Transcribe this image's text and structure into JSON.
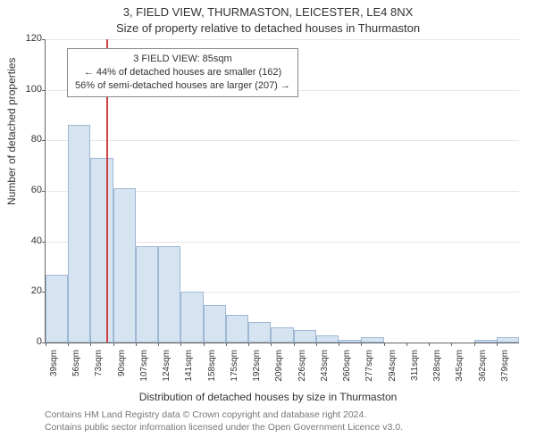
{
  "title_line1": "3, FIELD VIEW, THURMASTON, LEICESTER, LE4 8NX",
  "title_line2": "Size of property relative to detached houses in Thurmaston",
  "ylabel": "Number of detached properties",
  "xlabel": "Distribution of detached houses by size in Thurmaston",
  "footer_line1": "Contains HM Land Registry data © Crown copyright and database right 2024.",
  "footer_line2": "Contains public sector information licensed under the Open Government Licence v3.0.",
  "annotation": {
    "line1": "3 FIELD VIEW:  85sqm",
    "line2": "← 44% of detached houses are smaller (162)",
    "line3": "56% of semi-detached houses are larger (207) →"
  },
  "chart": {
    "type": "histogram",
    "ylim": [
      0,
      120
    ],
    "ytick_step": 20,
    "bar_fill": "#d6e4f2",
    "bar_stroke": "#9fb8d4",
    "grid_color": "#e6e6e6",
    "axis_color": "#666666",
    "refline_color": "#d04040",
    "refline_x_value": 85,
    "background": "#ffffff",
    "x_start": 39,
    "x_step": 17,
    "x_unit": "sqm",
    "categories": [
      "39sqm",
      "56sqm",
      "73sqm",
      "90sqm",
      "107sqm",
      "124sqm",
      "141sqm",
      "158sqm",
      "175sqm",
      "192sqm",
      "209sqm",
      "226sqm",
      "243sqm",
      "260sqm",
      "277sqm",
      "294sqm",
      "311sqm",
      "328sqm",
      "345sqm",
      "362sqm",
      "379sqm"
    ],
    "values": [
      27,
      86,
      73,
      61,
      38,
      38,
      20,
      15,
      11,
      8,
      6,
      5,
      3,
      1,
      2,
      0,
      0,
      0,
      0,
      1,
      2
    ],
    "title_fontsize": 13,
    "label_fontsize": 12,
    "tick_fontsize": 11
  }
}
